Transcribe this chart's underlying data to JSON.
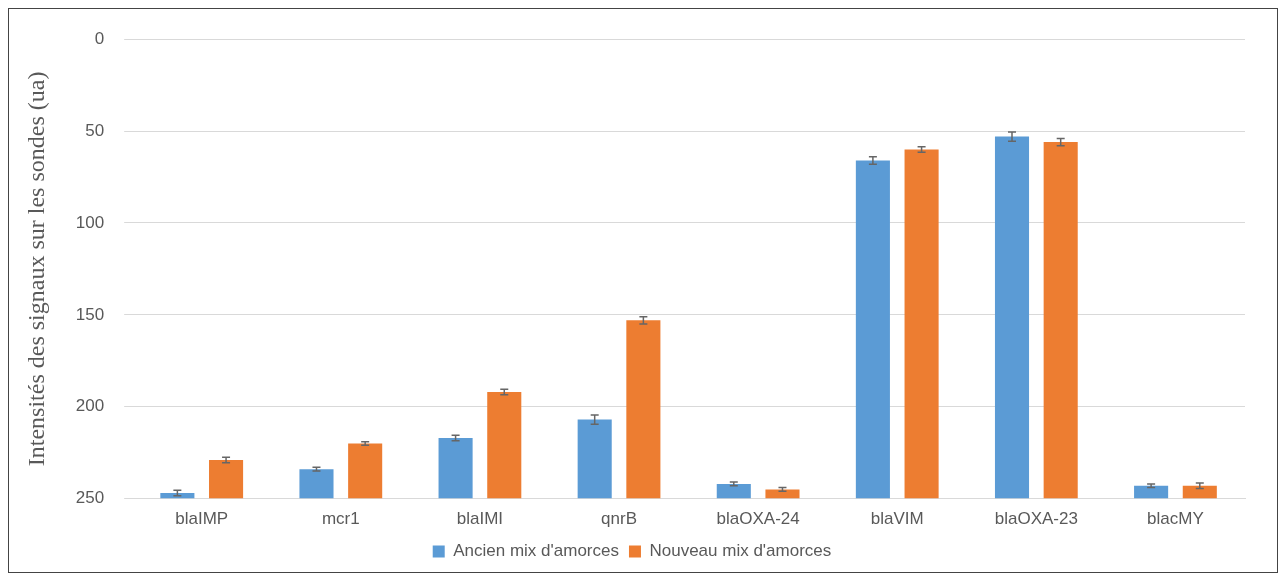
{
  "chart_data": {
    "type": "bar",
    "ylabel": "Intensités des signaux sur les sondes (ua)",
    "categories": [
      "blaIMP",
      "mcr1",
      "blaIMI",
      "qnrB",
      "blaOXA-24",
      "blaVIM",
      "blaOXA-23",
      "blacMY"
    ],
    "series": [
      {
        "name": "Ancien mix d'amorces",
        "color": "#5b9bd5",
        "base": [
          250,
          250,
          250,
          250,
          250,
          250,
          250,
          250
        ],
        "values": [
          -3,
          -16,
          -33,
          -43,
          -8,
          -184,
          -197,
          -7
        ],
        "errors": [
          1.5,
          1,
          1.5,
          2.5,
          1,
          2,
          2.5,
          1
        ]
      },
      {
        "name": "Nouveau mix d'amorces",
        "color": "#ed7d31",
        "base": [
          250,
          250,
          250,
          250,
          250,
          250,
          250,
          250
        ],
        "values": [
          -21,
          -30,
          -58,
          -97,
          -5,
          -190,
          -194,
          -7
        ],
        "errors": [
          1.5,
          1,
          1.5,
          2,
          1,
          1.5,
          2,
          1.5
        ]
      }
    ],
    "ylim": [
      250,
      0
    ],
    "yticks": [
      0,
      50,
      100,
      150,
      200,
      250
    ],
    "grid": "y",
    "legend": "bottom"
  }
}
